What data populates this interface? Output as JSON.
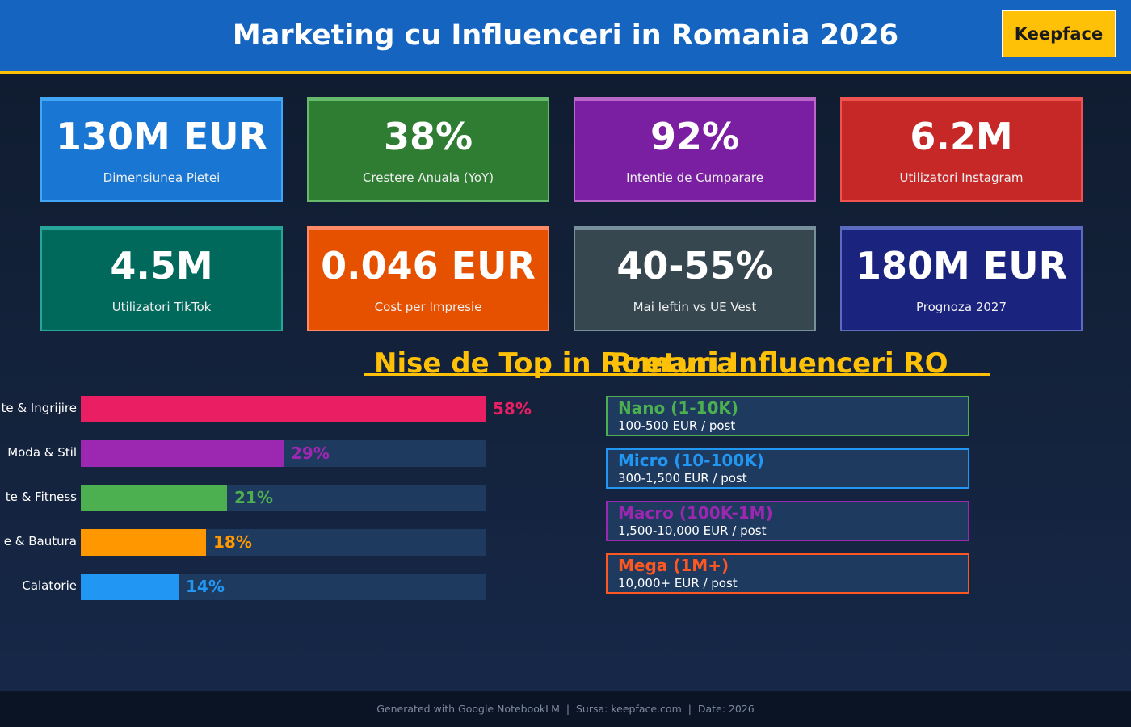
{
  "header": {
    "title": "Marketing cu Influenceri in Romania 2026",
    "brand": "Keepface"
  },
  "stats": [
    {
      "value": "130M EUR",
      "label": "Dimensiunea Pietei",
      "bg": "#1976d2",
      "border": "#42a5f5"
    },
    {
      "value": "38%",
      "label": "Crestere Anuala (YoY)",
      "bg": "#2e7d32",
      "border": "#66bb6a"
    },
    {
      "value": "92%",
      "label": "Intentie de Cumparare",
      "bg": "#7b1fa2",
      "border": "#ba68c8"
    },
    {
      "value": "6.2M",
      "label": "Utilizatori Instagram",
      "bg": "#c62828",
      "border": "#ef5350"
    },
    {
      "value": "4.5M",
      "label": "Utilizatori TikTok",
      "bg": "#00695c",
      "border": "#26a69a"
    },
    {
      "value": "0.046 EUR",
      "label": "Cost per Impresie",
      "bg": "#e65100",
      "border": "#ff8a65"
    },
    {
      "value": "40-55%",
      "label": "Mai Ieftin vs UE Vest",
      "bg": "#37474f",
      "border": "#78909c"
    },
    {
      "value": "180M EUR",
      "label": "Prognoza 2027",
      "bg": "#1a237e",
      "border": "#5c6bc0"
    }
  ],
  "sections": {
    "niches_title": "Nise de Top in Romania",
    "pricing_title": "Preturi Influenceri RO"
  },
  "chart_data": {
    "type": "bar",
    "orientation": "horizontal",
    "title": "Nise de Top in Romania",
    "categories": [
      "Frumusete & Ingrijire",
      "Moda & Stil",
      "Sanatate & Fitness",
      "Mancare & Bautura",
      "Calatorie"
    ],
    "visible_labels": [
      "te & Ingrijire",
      "Moda & Stil",
      "te & Fitness",
      "e & Bautura",
      "Calatorie"
    ],
    "values": [
      58,
      29,
      21,
      18,
      14
    ],
    "value_labels": [
      "58%",
      "29%",
      "21%",
      "18%",
      "14%"
    ],
    "colors": [
      "#e91e63",
      "#9c27b0",
      "#4caf50",
      "#ff9800",
      "#2196f3"
    ],
    "xlim": [
      0,
      58
    ],
    "track_color": "#1e3a5f"
  },
  "pricing": [
    {
      "tier": "Nano (1-10K)",
      "price": "100-500 EUR / post",
      "color": "#4caf50"
    },
    {
      "tier": "Micro (10-100K)",
      "price": "300-1,500 EUR / post",
      "color": "#2196f3"
    },
    {
      "tier": "Macro (100K-1M)",
      "price": "1,500-10,000 EUR / post",
      "color": "#9c27b0"
    },
    {
      "tier": "Mega (1M+)",
      "price": "10,000+ EUR / post",
      "color": "#ff5722"
    }
  ],
  "footer": {
    "text": "Generated with Google NotebookLM  |  Sursa: keepface.com  |  Date: 2026"
  }
}
